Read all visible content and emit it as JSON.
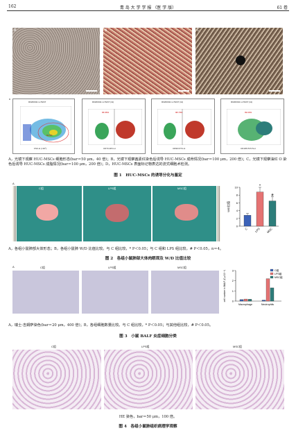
{
  "header": {
    "page_left": "162",
    "journal": "青 岛 大 学 学 报 （医 学 版）",
    "volume": "61 卷"
  },
  "fig1": {
    "panels": [
      "A",
      "B",
      "C",
      "D"
    ],
    "flow_labels": {
      "d1_title": "R0200011 H-TEST",
      "d1_gate": "91.5%",
      "d1_x": "FSC-H (×10⁶)",
      "d1_y": "SSC-H (×10⁶)",
      "d2_title": "R0200011 H-TEST (11)",
      "d2_pct": "96.96%",
      "d2_x": "CD73 APC-H",
      "d3_title": "R0200011 H-TEST (11)",
      "d3_pct": "98.79%",
      "d3_x": "CD90 FITC-H",
      "d4_title": "R0200011 H-TEST (11)",
      "d4_pct": "99.03%",
      "d4_x": "CD105 PC5.5-H",
      "legend_test": "R0200011 H-TEST",
      "legend_iso": "R0200011 H-ISO"
    },
    "caption": "A，光镜下观察 HUC-MSCs 细胞形态(bar＝50 μm，40 倍)；B，光镜下观察茜素红染色后诱导 HUC-MSCs 成骨情况(bar＝100 μm，200 倍)；C，光镜下观察油红 O 染色后诱导 HUC-MSCs 成脂情况(bar＝100 μm，200 倍)；D，HUC-MSCs 表面标记物表达的流式细胞术检测。",
    "title": "图 1　HUC-MSCs 的诱导分化与鉴定"
  },
  "fig2": {
    "panels": [
      "A",
      "B"
    ],
    "groups": [
      "C组",
      "LPS组",
      "MSC组"
    ],
    "caption": "A，各组小鼠肺部大体形态；B，各组小鼠肺 W/D 比值比较。与 C 组比较，* P＜0.05；与 C 组和 LPS 组比较，# P＜0.05，n＝4。",
    "title": "图 2　各组小鼠肺部大体肉眼观及 W/D 比值比较"
  },
  "fig3": {
    "panels": [
      "A",
      "B"
    ],
    "groups": [
      "C组",
      "LPS组",
      "MSC组"
    ],
    "caption": "A，瑞士-吉姆萨染色(bar＝20 μm，400 倍)；B，各组细胞数量比较。与 C 组比较，* P＜0.05；与其他组比较，# P＜0.05。",
    "title": "图 3　小鼠 BALF 炎症细胞分类"
  },
  "fig4": {
    "groups": [
      "C组",
      "LPS组",
      "MSC组"
    ],
    "caption": "HE 染色，bar＝50 μm，100 倍。",
    "title": "图 4　各组小鼠肺组织病理学观察"
  },
  "chart_data": [
    {
      "type": "bar",
      "categories": [
        "C",
        "LPS",
        "MSC"
      ],
      "values": [
        2.8,
        8.8,
        6.5
      ],
      "errors": [
        0.5,
        1.2,
        1.1
      ],
      "ylabel": "W/D比值",
      "ylim": [
        0,
        10
      ],
      "yticks": [
        0,
        2,
        4,
        6,
        8,
        10
      ],
      "annotations": [
        "",
        "*",
        "#"
      ],
      "colors": [
        "#3b62b8",
        "#e57373",
        "#2d7d7a"
      ]
    },
    {
      "type": "bar",
      "categories": [
        "Macrophage",
        "Neutrophils"
      ],
      "series": [
        {
          "name": "C组",
          "values": [
            0.15,
            0.1
          ]
        },
        {
          "name": "LPS组",
          "values": [
            0.2,
            2.2
          ]
        },
        {
          "name": "MSC组",
          "values": [
            0.18,
            1.3
          ]
        }
      ],
      "ylabel": "cell number in BALF (Cₙₗₗ/10⁻⁴)",
      "ylim": [
        0,
        3
      ],
      "yticks": [
        0,
        1,
        2,
        3
      ],
      "colors": [
        "#3b62b8",
        "#e57373",
        "#2d7d7a"
      ]
    }
  ]
}
